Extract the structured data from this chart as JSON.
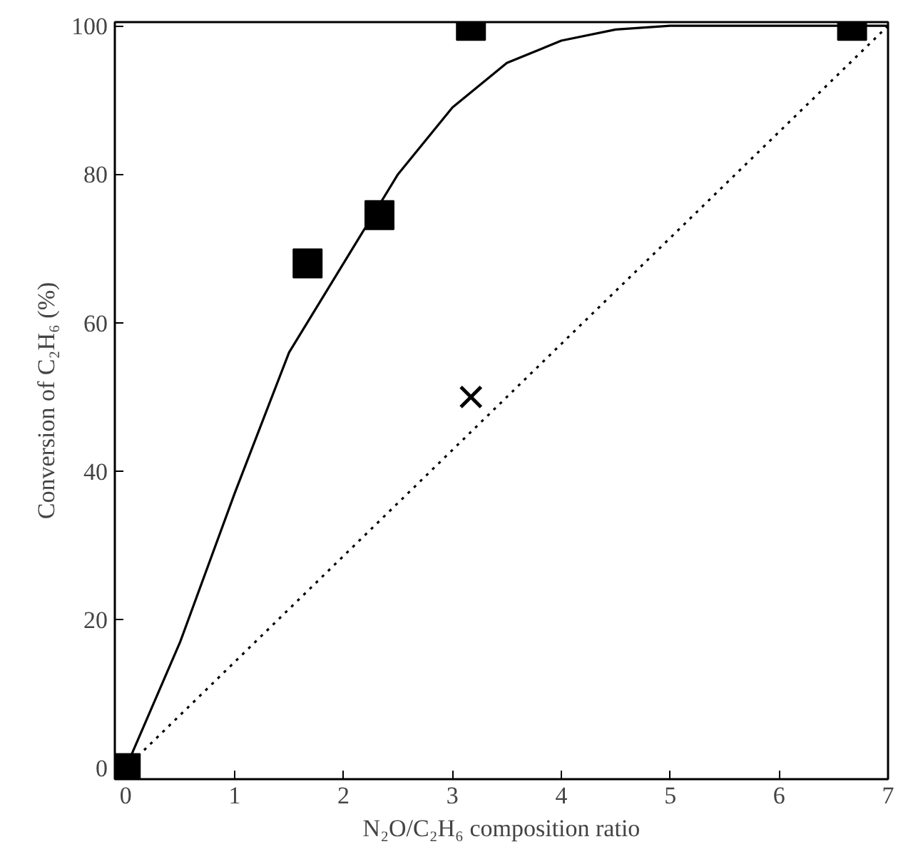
{
  "chart_data": {
    "type": "scatter",
    "xlabel": "N₂O/C₂H₆ composition ratio",
    "ylabel": "Conversion of C₂H₆ (%)",
    "xlim": [
      -0.1,
      7
    ],
    "ylim": [
      -1.5,
      100.5
    ],
    "xticks": [
      0,
      1,
      2,
      3,
      4,
      5,
      6,
      7
    ],
    "yticks": [
      0,
      20,
      40,
      60,
      80,
      100
    ],
    "grid": false,
    "series": [
      {
        "marker": "square",
        "color": "#000000",
        "x": [
          0,
          1.67,
          2.33,
          3.17,
          6.67
        ],
        "values": [
          0,
          68,
          74.5,
          100,
          100
        ]
      },
      {
        "marker": "cross",
        "color": "#000000",
        "x": [
          3.17
        ],
        "values": [
          50
        ]
      },
      {
        "type": "line",
        "line_style": "solid",
        "marker": "none",
        "color": "#000000",
        "x": [
          0,
          0.5,
          1,
          1.5,
          2,
          2.5,
          3,
          3.5,
          4,
          4.5,
          5,
          6,
          7
        ],
        "values": [
          0,
          17,
          37,
          56,
          68,
          80,
          89,
          95,
          98,
          99.5,
          100,
          100,
          100
        ]
      },
      {
        "type": "line",
        "line_style": "dotted",
        "marker": "none",
        "color": "#000000",
        "x": [
          0,
          7
        ],
        "values": [
          0,
          100
        ]
      }
    ]
  }
}
